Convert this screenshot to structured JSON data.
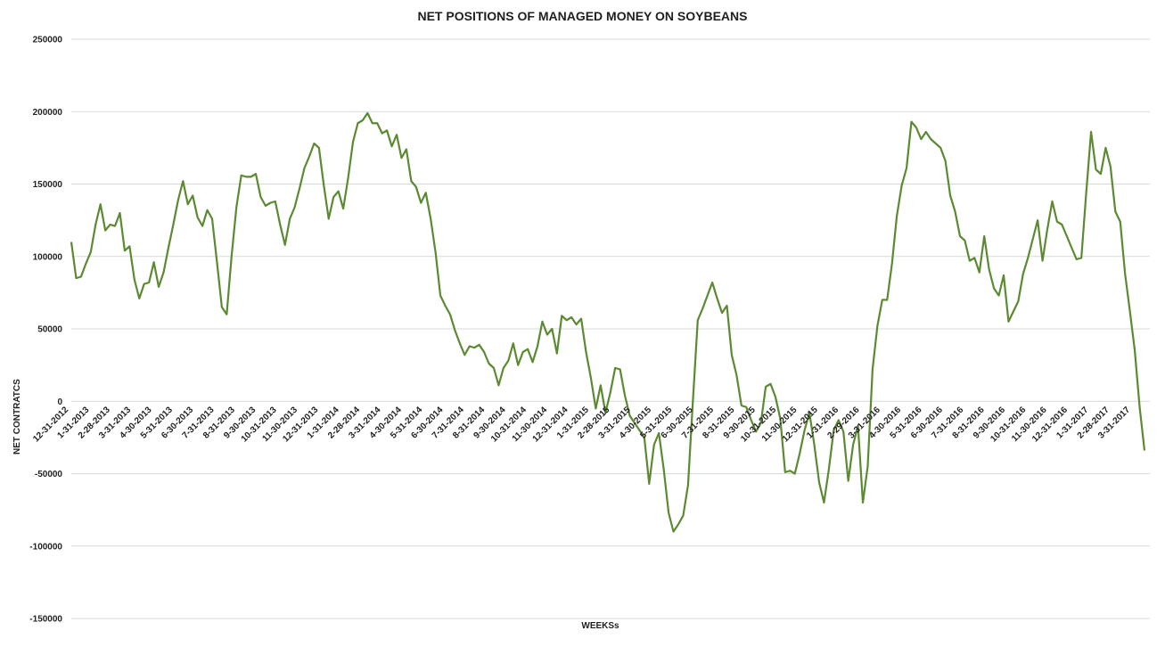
{
  "chart_data": {
    "type": "line",
    "title": "NET POSITIONS OF MANAGED MONEY ON SOYBEANS",
    "xlabel": "WEEKSs",
    "ylabel": "NET CONTRATCS",
    "ylim": [
      -150000,
      250000
    ],
    "yticks": [
      "250000",
      "200000",
      "150000",
      "100000",
      "50000",
      "0",
      "-50000",
      "-100000",
      "-150000"
    ],
    "grid": "horizontal",
    "legend": "none",
    "line_color": "#5b8a32",
    "x_tick_labels": [
      "12-31-2012",
      "1-31-2013",
      "2-28-2013",
      "3-31-2013",
      "4-30-2013",
      "5-31-2013",
      "6-30-2013",
      "7-31-2013",
      "8-31-2013",
      "9-30-2013",
      "10-31-2013",
      "11-30-2013",
      "12-31-2013",
      "1-31-2014",
      "2-28-2014",
      "3-31-2014",
      "4-30-2014",
      "5-31-2014",
      "6-30-2014",
      "7-31-2014",
      "8-31-2014",
      "9-30-2014",
      "10-31-2014",
      "11-30-2014",
      "12-31-2014",
      "1-31-2015",
      "2-28-2015",
      "3-31-2015",
      "4-30-2015",
      "5-31-2015",
      "6-30-2015",
      "7-31-2015",
      "8-31-2015",
      "9-30-2015",
      "10-31-2015",
      "11-30-2015",
      "12-31-2015",
      "1-31-2016",
      "2-29-2016",
      "3-31-2016",
      "4-30-2016",
      "5-31-2016",
      "6-30-2016",
      "7-31-2016",
      "8-31-2016",
      "9-30-2016",
      "10-31-2016",
      "11-30-2016",
      "12-31-2016",
      "1-31-2017",
      "2-28-2017",
      "3-31-2017"
    ],
    "series": [
      {
        "values": [
          110000,
          85000,
          86000,
          95000,
          103000,
          122000,
          136000,
          118000,
          122000,
          121000,
          130000,
          104000,
          107000,
          84000,
          71000,
          81000,
          82000,
          96000,
          79000,
          89000,
          106000,
          122000,
          139000,
          152000,
          136000,
          142000,
          127000,
          121000,
          132000,
          126000,
          96000,
          65000,
          60000,
          100000,
          134000,
          156000,
          155000,
          155000,
          157000,
          141000,
          135000,
          137000,
          138000,
          122000,
          108000,
          126000,
          134000,
          147000,
          161000,
          169000,
          178000,
          175000,
          149000,
          126000,
          141000,
          145000,
          133000,
          154000,
          179000,
          192000,
          194000,
          199000,
          192000,
          192000,
          185000,
          187000,
          176000,
          184000,
          168000,
          174000,
          152000,
          148000,
          137000,
          144000,
          126000,
          103000,
          73000,
          66000,
          60000,
          49000,
          40000,
          32000,
          38000,
          37000,
          39000,
          34000,
          26000,
          23000,
          11000,
          23000,
          28000,
          40000,
          25000,
          34000,
          36000,
          27000,
          38000,
          55000,
          46000,
          50000,
          33000,
          59000,
          56000,
          58000,
          53000,
          57000,
          34000,
          16000,
          -5000,
          11000,
          -8000,
          6000,
          23000,
          22000,
          4000,
          -10000,
          -15000,
          -20000,
          -25000,
          -57000,
          -30000,
          -22000,
          -47000,
          -77000,
          -90000,
          -85000,
          -79000,
          -58000,
          0,
          56000,
          64000,
          73000,
          82000,
          71000,
          61000,
          66000,
          32000,
          18000,
          -3000,
          -4000,
          -13000,
          -21000,
          -15000,
          10000,
          12000,
          3000,
          -12000,
          -49000,
          -48000,
          -50000,
          -36000,
          -20000,
          -8000,
          -30000,
          -56000,
          -70000,
          -47000,
          -20000,
          -13000,
          -21000,
          -55000,
          -30000,
          -17000,
          -70000,
          -45000,
          22000,
          52000,
          70000,
          70000,
          95000,
          128000,
          149000,
          161000,
          193000,
          189000,
          181000,
          186000,
          181000,
          178000,
          175000,
          166000,
          142000,
          131000,
          114000,
          111000,
          97000,
          99000,
          89000,
          114000,
          91000,
          78000,
          73000,
          87000,
          55000,
          62000,
          69000,
          88000,
          99000,
          112000,
          125000,
          97000,
          119000,
          138000,
          124000,
          122000,
          114000,
          106000,
          98000,
          99000,
          144000,
          186000,
          160000,
          157000,
          175000,
          162000,
          131000,
          124000,
          88000,
          62000,
          35000,
          -4000,
          -34000
        ]
      }
    ]
  }
}
